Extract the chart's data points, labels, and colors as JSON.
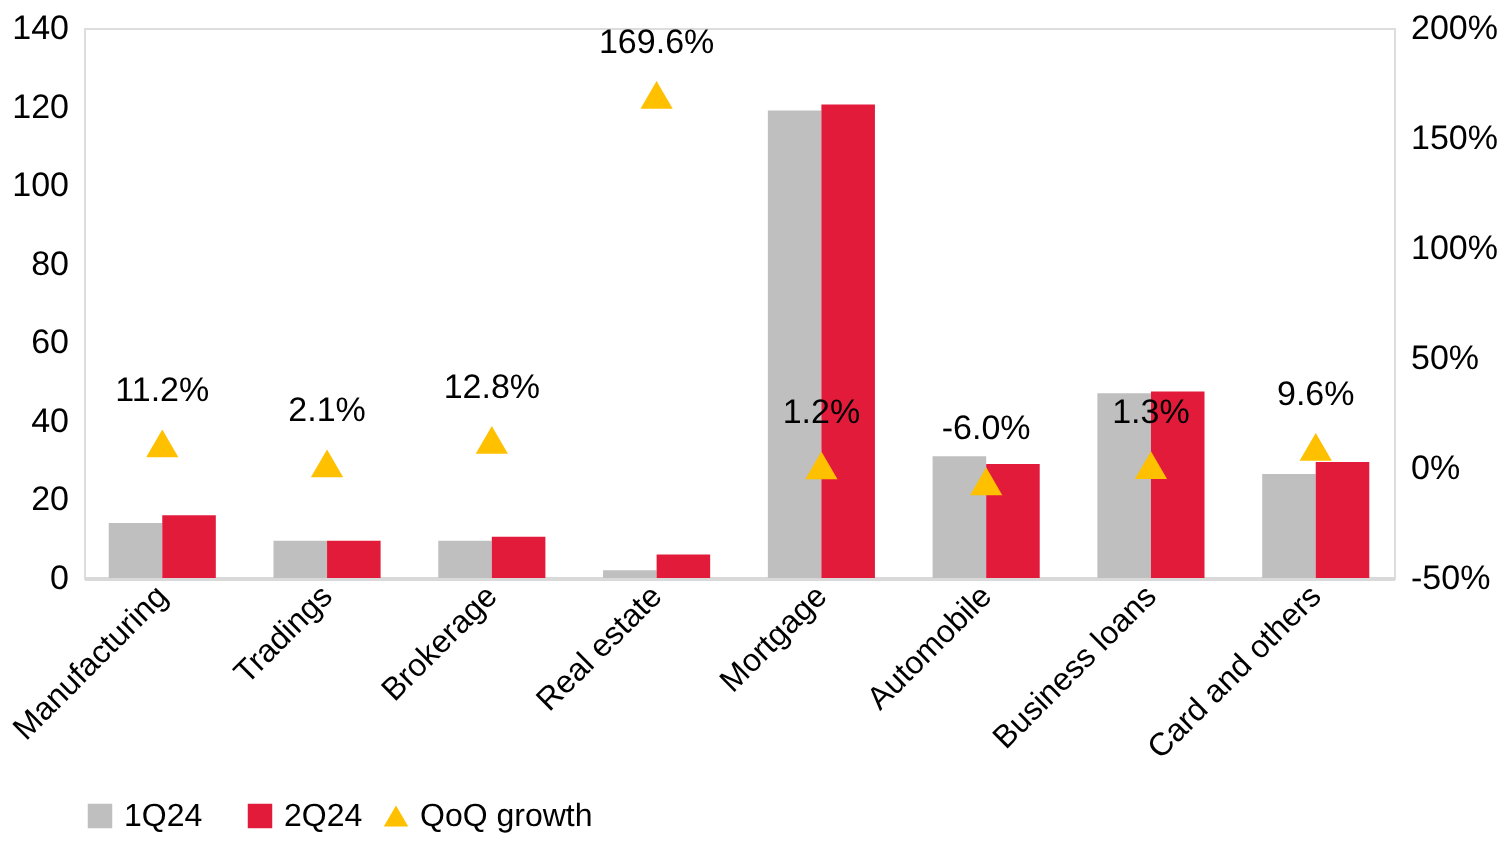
{
  "chart_data": {
    "type": "bar",
    "categories": [
      "Manufacturing",
      "Tradings",
      "Brokerage",
      "Real estate",
      "Mortgage",
      "Automobile",
      "Business loans",
      "Card and others"
    ],
    "series": [
      {
        "name": "1Q24",
        "color": "#bfbfbf",
        "values": [
          14,
          9.5,
          9.5,
          2,
          119,
          31,
          47,
          26.5
        ]
      },
      {
        "name": "2Q24",
        "color": "#e31b3b",
        "values": [
          16,
          9.5,
          10.5,
          6,
          120.5,
          29,
          47.5,
          29.5
        ]
      },
      {
        "name": "QoQ growth",
        "type": "scatter",
        "axis": "y2",
        "color": "#ffc000",
        "marker": "triangle",
        "values": [
          11.2,
          2.1,
          12.8,
          169.6,
          1.2,
          -6.0,
          1.3,
          9.6
        ],
        "value_labels": [
          "11.2%",
          "2.1%",
          "12.8%",
          "169.6%",
          "1.2%",
          "-6.0%",
          "1.3%",
          "9.6%"
        ]
      }
    ],
    "ylim": [
      0,
      140
    ],
    "yticks": [
      0,
      20,
      40,
      60,
      80,
      100,
      120,
      140
    ],
    "y2lim": [
      -50,
      200
    ],
    "y2ticks": [
      {
        "value": -50,
        "label": "-50%"
      },
      {
        "value": 0,
        "label": "0%"
      },
      {
        "value": 50,
        "label": "50%"
      },
      {
        "value": 100,
        "label": "100%"
      },
      {
        "value": 150,
        "label": "150%"
      },
      {
        "value": 200,
        "label": "200%"
      }
    ],
    "grid": false,
    "legend": "bottom"
  }
}
